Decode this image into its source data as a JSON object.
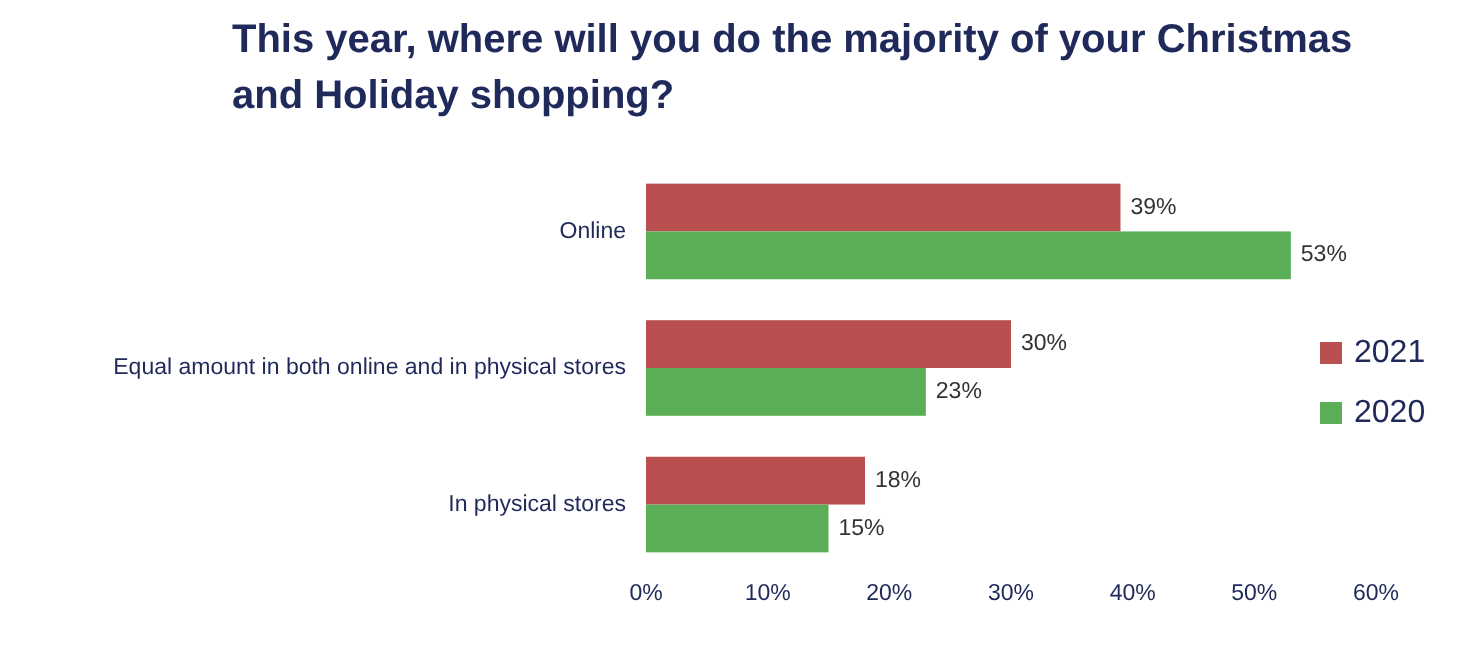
{
  "chart_data": {
    "type": "bar",
    "orientation": "horizontal",
    "title": "This year, where will you do the majority of your Christmas and Holiday shopping?",
    "categories": [
      "Online",
      "Equal amount in both online and in physical stores",
      "In physical stores"
    ],
    "series": [
      {
        "name": "2021",
        "color": "#b9504f",
        "values": [
          39,
          30,
          18
        ],
        "value_labels": [
          "39%",
          "30%",
          "18%"
        ]
      },
      {
        "name": "2020",
        "color": "#5aae55",
        "values": [
          53,
          23,
          15
        ],
        "value_labels": [
          "53%",
          "23%",
          "15%"
        ]
      }
    ],
    "xlim": [
      0,
      60
    ],
    "xticks": [
      {
        "value": 0,
        "label": "0%"
      },
      {
        "value": 10,
        "label": "10%"
      },
      {
        "value": 20,
        "label": "20%"
      },
      {
        "value": 30,
        "label": "30%"
      },
      {
        "value": 40,
        "label": "40%"
      },
      {
        "value": 50,
        "label": "50%"
      },
      {
        "value": 60,
        "label": "60%"
      }
    ],
    "legend": "right",
    "grid": false
  }
}
